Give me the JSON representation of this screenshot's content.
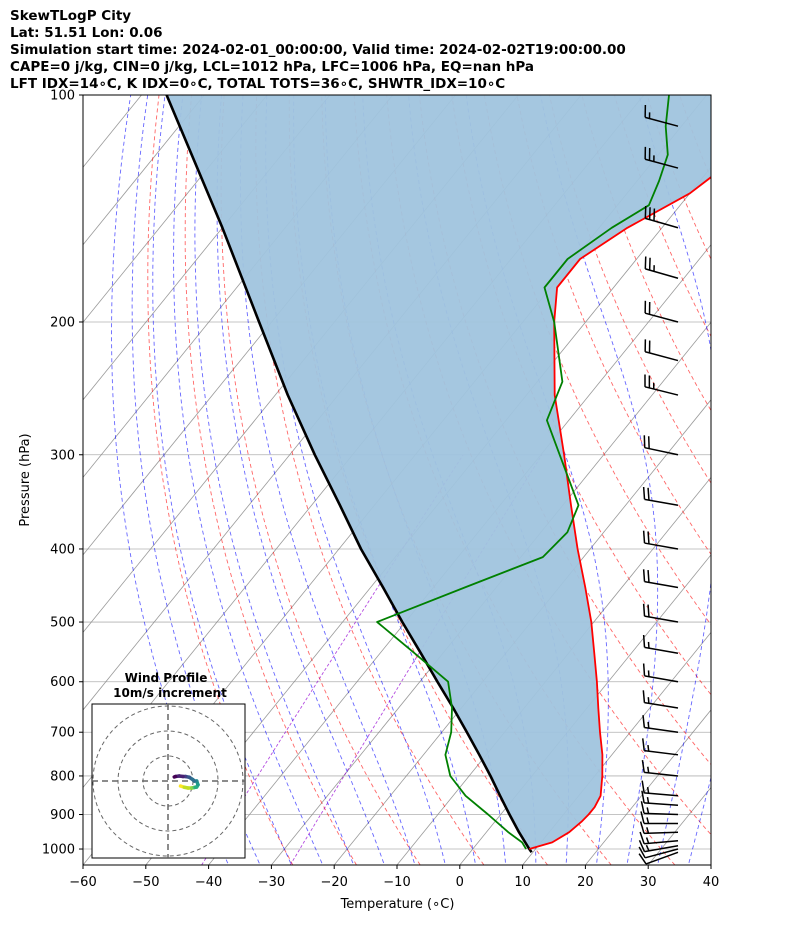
{
  "header": {
    "line1": "SkewTLogP City",
    "line2": "Lat: 51.51   Lon: 0.06",
    "line3": "Simulation start time: 2024-02-01_00:00:00, Valid time: 2024-02-02T19:00:00.00",
    "line4": "CAPE=0 j/kg, CIN=0 j/kg, LCL=1012 hPa, LFC=1006 hPa, EQ=nan hPa",
    "line5": "LFT IDX=14∘C, K IDX=0∘C, TOTAL TOTS=36∘C, SHWTR_IDX=10∘C"
  },
  "chart_data": {
    "type": "line",
    "subtype": "skew-t log-p",
    "xlabel": "Temperature (∘C)",
    "ylabel": "Pressure (hPa)",
    "xlim": [
      -60,
      40
    ],
    "ylim": [
      1050,
      100
    ],
    "y_scale": "log",
    "grid": true,
    "x_ticks": [
      -60,
      -50,
      -40,
      -30,
      -20,
      -10,
      0,
      10,
      20,
      30,
      40
    ],
    "y_ticks": [
      100,
      200,
      300,
      400,
      500,
      600,
      700,
      800,
      900,
      1000
    ],
    "colors": {
      "temperature": "#ff0000",
      "dewpoint": "#008000",
      "parcel": "#000000",
      "shade": "#a0c4de",
      "dry_adiabats": "#ff0000",
      "moist_adiabats": "#0000ff",
      "mixing_ratio": "#9400d3",
      "isotherms": "#888888"
    },
    "series": [
      {
        "name": "temperature",
        "pressure": [
          1000,
          980,
          950,
          920,
          900,
          880,
          850,
          800,
          750,
          700,
          650,
          600,
          550,
          500,
          450,
          400,
          350,
          300,
          250,
          200,
          180,
          165,
          150,
          135,
          125,
          115,
          100
        ],
        "values": [
          9.0,
          11.8,
          13.2,
          13.8,
          14.0,
          14.0,
          13.5,
          11.2,
          8.5,
          5.2,
          1.8,
          -1.8,
          -5.9,
          -10.4,
          -15.8,
          -22.0,
          -28.7,
          -36.3,
          -45.5,
          -55.0,
          -59.0,
          -59.0,
          -55.5,
          -50.0,
          -48.0,
          -49.5,
          -57.0
        ]
      },
      {
        "name": "dewpoint",
        "pressure": [
          1000,
          980,
          950,
          900,
          850,
          800,
          750,
          700,
          650,
          600,
          550,
          500,
          450,
          410,
          380,
          350,
          300,
          270,
          240,
          200,
          180,
          165,
          150,
          140,
          130,
          120,
          110,
          100
        ],
        "values": [
          8.5,
          7.0,
          3.5,
          -2.0,
          -8.0,
          -13.0,
          -16.5,
          -18.5,
          -21.5,
          -25.5,
          -34.5,
          -44.5,
          -35.0,
          -26.5,
          -25.8,
          -27.5,
          -37.0,
          -43.5,
          -46.0,
          -55.0,
          -61.0,
          -61.0,
          -58.0,
          -55.0,
          -56.5,
          -58.5,
          -62.5,
          -66.0
        ]
      },
      {
        "name": "parcel",
        "pressure": [
          1010,
          1000,
          950,
          900,
          850,
          800,
          750,
          700,
          650,
          600,
          550,
          500,
          450,
          400,
          350,
          300,
          250,
          200,
          150,
          100
        ],
        "values": [
          9.8,
          9.0,
          5.2,
          1.4,
          -2.5,
          -6.6,
          -11.1,
          -16.0,
          -21.3,
          -27.2,
          -33.5,
          -40.5,
          -48.0,
          -56.5,
          -65.5,
          -76.0,
          -88.0,
          -102.0,
          -120.0,
          -146.0
        ]
      }
    ],
    "wind_barbs": {
      "pressure": [
        1010,
        1000,
        990,
        975,
        950,
        925,
        900,
        875,
        850,
        800,
        750,
        700,
        650,
        600,
        550,
        500,
        450,
        400,
        350,
        300,
        250,
        225,
        200,
        175,
        150,
        125,
        110
      ],
      "speed_kt": [
        10,
        12,
        14,
        15,
        15,
        15,
        15,
        15,
        15,
        15,
        15,
        15,
        15,
        15,
        15,
        20,
        20,
        20,
        20,
        20,
        25,
        20,
        20,
        25,
        30,
        25,
        15
      ],
      "direction_deg": [
        250,
        255,
        260,
        265,
        268,
        270,
        272,
        274,
        275,
        276,
        277,
        278,
        279,
        280,
        280,
        280,
        280,
        280,
        280,
        282,
        284,
        285,
        285,
        286,
        286,
        285,
        285
      ]
    },
    "hodograph": {
      "title_line1": "Wind Profile",
      "title_line2": "10m/s increment",
      "ring_spacing_ms": 10,
      "u_ms": [
        5.0,
        6.5,
        8.0,
        9.5,
        10.5,
        11.0,
        11.5,
        12.0,
        11.5,
        10.5,
        10.0,
        8.5,
        7.0,
        6.0,
        4.5,
        3.0,
        2.5
      ],
      "v_ms": [
        -2.0,
        -2.5,
        -2.8,
        -2.8,
        -2.6,
        -2.5,
        -2.4,
        -1.5,
        0.0,
        0.0,
        0.5,
        1.5,
        1.8,
        1.8,
        2.0,
        1.8,
        1.6
      ]
    }
  }
}
